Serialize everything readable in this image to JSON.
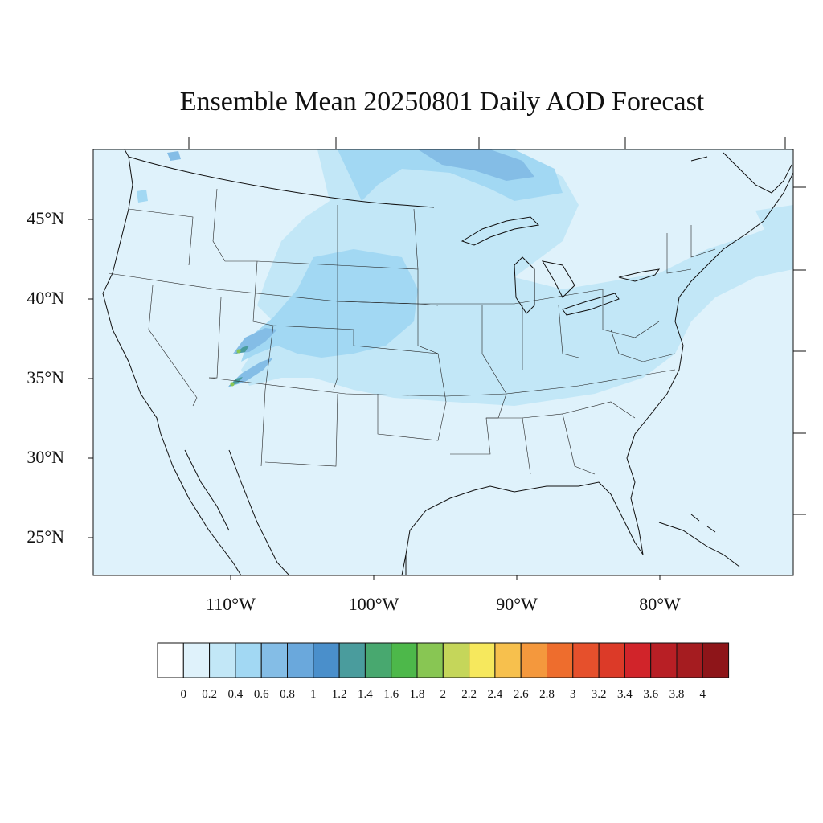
{
  "title": "Ensemble Mean 20250801 Daily AOD Forecast",
  "latitude_labels": [
    "45°N",
    "40°N",
    "35°N",
    "30°N",
    "25°N"
  ],
  "longitude_labels": [
    "110°W",
    "100°W",
    "90°W",
    "80°W"
  ],
  "colorbar": {
    "labels": [
      "0",
      "0.2",
      "0.4",
      "0.6",
      "0.8",
      "1",
      "1.2",
      "1.4",
      "1.6",
      "1.8",
      "2",
      "2.2",
      "2.4",
      "2.6",
      "2.8",
      "3",
      "3.2",
      "3.4",
      "3.6",
      "3.8",
      "4"
    ],
    "colors": [
      "#ffffff",
      "#dff2fb",
      "#c2e7f7",
      "#a2d8f3",
      "#84bde6",
      "#6aa8dc",
      "#4a8fcb",
      "#4a9c9d",
      "#48a86f",
      "#4db84a",
      "#88c653",
      "#c5d65a",
      "#f6e85d",
      "#f7c04d",
      "#f4983d",
      "#ee6d2d",
      "#e6502c",
      "#dc3a28",
      "#d1242a",
      "#b81f25",
      "#a51c20",
      "#8e1519"
    ]
  },
  "map_fill": {
    "background": "#dff2fb",
    "level_0_4": "#c2e7f7",
    "level_0_6": "#a2d8f3",
    "level_0_8": "#84bde6",
    "level_1_2": "#4a9c9d",
    "level_1_8": "#88c653"
  }
}
